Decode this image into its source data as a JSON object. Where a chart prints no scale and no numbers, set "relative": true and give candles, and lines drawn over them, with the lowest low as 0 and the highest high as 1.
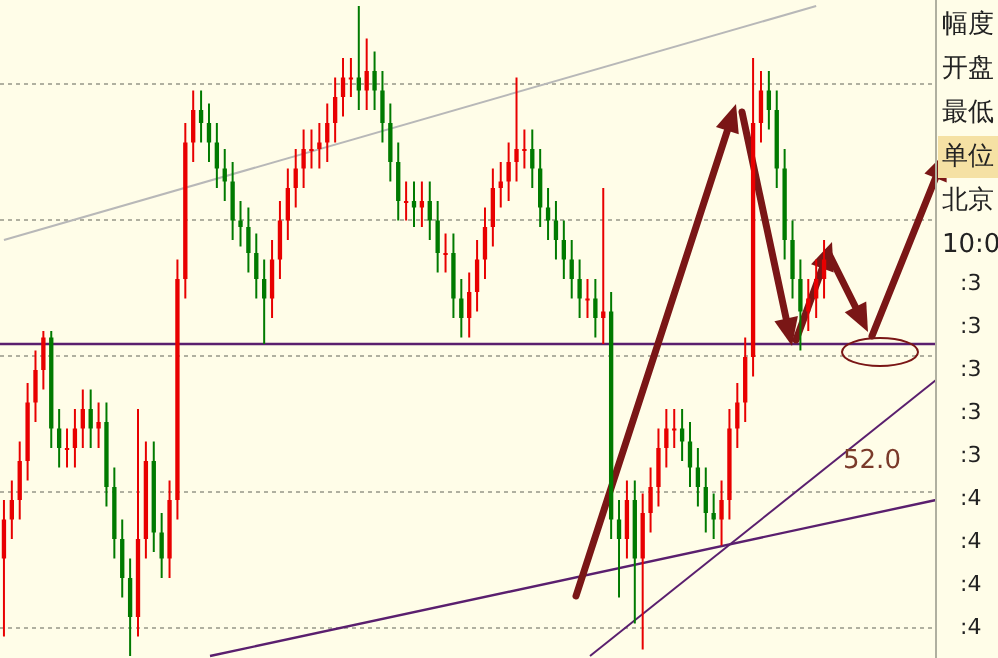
{
  "chart_data": {
    "type": "candlestick",
    "relative": true,
    "grid": true,
    "colors": [
      "#e80000",
      "#e80000",
      "#e80000",
      "#e80000",
      "#e80000",
      "#e80000",
      "#007a00",
      "#007a00",
      "#e80000",
      "#e80000",
      "#e80000",
      "#007a00",
      "#e80000",
      "#007a00",
      "#007a00",
      "#007a00",
      "#007a00",
      "#e80000",
      "#e80000",
      "#007a00",
      "#007a00",
      "#e80000",
      "#e80000",
      "#e80000",
      "#e80000",
      "#007a00",
      "#007a00",
      "#007a00",
      "#007a00",
      "#007a00",
      "#007a00",
      "#007a00",
      "#007a00",
      "#007a00",
      "#e80000",
      "#e80000",
      "#e80000",
      "#e80000",
      "#e80000",
      "#e80000",
      "#e80000",
      "#e80000",
      "#e80000",
      "#e80000",
      "#e80000",
      "#007a00",
      "#e80000",
      "#007a00",
      "#007a00",
      "#007a00",
      "#007a00",
      "#e80000",
      "#007a00",
      "#e80000",
      "#007a00",
      "#007a00",
      "#e80000",
      "#007a00",
      "#007a00",
      "#e80000",
      "#e80000",
      "#e80000",
      "#e80000",
      "#e80000",
      "#e80000",
      "#e80000",
      "#e80000",
      "#007a00",
      "#007a00",
      "#007a00",
      "#007a00",
      "#007a00",
      "#007a00",
      "#007a00",
      "#e80000",
      "#007a00",
      "#e80000",
      "#007a00",
      "#007a00",
      "#e80000",
      "#007a00",
      "#e80000",
      "#e80000",
      "#e80000",
      "#e80000",
      "#e80000",
      "#007a00",
      "#007a00",
      "#007a00",
      "#007a00",
      "#007a00",
      "#e80000",
      "#e80000",
      "#e80000",
      "#e80000",
      "#e80000",
      "#e80000",
      "#007a00",
      "#007a00",
      "#007a00",
      "#007a00",
      "#007a00",
      "#e80000",
      "#e80000",
      "#e80000"
    ],
    "categories": [
      null,
      null,
      null,
      null,
      null,
      null,
      null,
      null,
      null,
      null,
      null,
      null,
      null,
      null,
      null,
      null,
      null,
      null,
      null,
      null,
      null,
      null,
      null,
      null,
      null,
      null,
      null,
      null,
      null,
      null,
      null,
      null,
      null,
      null,
      null,
      null,
      null,
      null,
      null,
      null,
      null,
      null,
      null,
      null,
      null,
      null,
      null,
      null,
      null,
      null,
      null,
      null,
      null,
      null,
      null,
      null,
      null,
      null,
      null,
      null,
      null,
      null,
      null,
      null,
      null,
      null,
      null,
      null,
      null,
      null,
      null,
      null,
      null,
      null,
      null,
      null,
      null,
      null,
      null,
      null,
      null,
      null,
      null,
      null,
      null,
      null,
      null,
      null,
      null,
      null,
      null,
      null,
      null,
      null,
      null,
      null,
      null,
      null,
      null,
      null,
      null,
      null,
      null,
      null,
      null
    ],
    "ohlc": [
      [
        0.15,
        0.24,
        0.03,
        0.21
      ],
      [
        0.21,
        0.27,
        0.18,
        0.24
      ],
      [
        0.24,
        0.33,
        0.21,
        0.3
      ],
      [
        0.3,
        0.42,
        0.27,
        0.39
      ],
      [
        0.39,
        0.47,
        0.36,
        0.44
      ],
      [
        0.44,
        0.5,
        0.41,
        0.49
      ],
      [
        0.49,
        0.5,
        0.32,
        0.35
      ],
      [
        0.35,
        0.38,
        0.29,
        0.32
      ],
      [
        0.32,
        0.35,
        0.29,
        0.32
      ],
      [
        0.32,
        0.38,
        0.29,
        0.35
      ],
      [
        0.35,
        0.41,
        0.32,
        0.38
      ],
      [
        0.38,
        0.41,
        0.32,
        0.35
      ],
      [
        0.35,
        0.39,
        0.32,
        0.36
      ],
      [
        0.36,
        0.39,
        0.23,
        0.26
      ],
      [
        0.26,
        0.29,
        0.15,
        0.18
      ],
      [
        0.18,
        0.21,
        0.09,
        0.12
      ],
      [
        0.12,
        0.15,
        0.0,
        0.06
      ],
      [
        0.06,
        0.38,
        0.03,
        0.18
      ],
      [
        0.18,
        0.33,
        0.15,
        0.3
      ],
      [
        0.3,
        0.33,
        0.16,
        0.19
      ],
      [
        0.19,
        0.22,
        0.12,
        0.15
      ],
      [
        0.15,
        0.27,
        0.12,
        0.24
      ],
      [
        0.24,
        0.61,
        0.21,
        0.58
      ],
      [
        0.58,
        0.82,
        0.55,
        0.79
      ],
      [
        0.79,
        0.87,
        0.76,
        0.84
      ],
      [
        0.84,
        0.87,
        0.79,
        0.82
      ],
      [
        0.82,
        0.85,
        0.76,
        0.79
      ],
      [
        0.79,
        0.82,
        0.72,
        0.75
      ],
      [
        0.75,
        0.78,
        0.7,
        0.73
      ],
      [
        0.73,
        0.76,
        0.64,
        0.67
      ],
      [
        0.67,
        0.7,
        0.63,
        0.66
      ],
      [
        0.66,
        0.69,
        0.59,
        0.62
      ],
      [
        0.62,
        0.65,
        0.55,
        0.58
      ],
      [
        0.58,
        0.61,
        0.48,
        0.55
      ],
      [
        0.55,
        0.64,
        0.52,
        0.61
      ],
      [
        0.61,
        0.7,
        0.58,
        0.67
      ],
      [
        0.67,
        0.75,
        0.64,
        0.72
      ],
      [
        0.72,
        0.78,
        0.69,
        0.75
      ],
      [
        0.75,
        0.81,
        0.72,
        0.78
      ],
      [
        0.78,
        0.81,
        0.75,
        0.78
      ],
      [
        0.78,
        0.82,
        0.75,
        0.79
      ],
      [
        0.79,
        0.85,
        0.76,
        0.82
      ],
      [
        0.82,
        0.89,
        0.79,
        0.86
      ],
      [
        0.86,
        0.92,
        0.83,
        0.89
      ],
      [
        0.89,
        0.92,
        0.86,
        0.89
      ],
      [
        0.89,
        1.0,
        0.84,
        0.87
      ],
      [
        0.87,
        0.95,
        0.84,
        0.9
      ],
      [
        0.9,
        0.93,
        0.84,
        0.87
      ],
      [
        0.87,
        0.9,
        0.79,
        0.82
      ],
      [
        0.82,
        0.85,
        0.73,
        0.76
      ],
      [
        0.76,
        0.79,
        0.67,
        0.7
      ],
      [
        0.7,
        0.73,
        0.67,
        0.7
      ],
      [
        0.7,
        0.73,
        0.66,
        0.69
      ],
      [
        0.69,
        0.73,
        0.66,
        0.7
      ],
      [
        0.7,
        0.73,
        0.64,
        0.67
      ],
      [
        0.67,
        0.7,
        0.59,
        0.62
      ],
      [
        0.62,
        0.65,
        0.59,
        0.62
      ],
      [
        0.62,
        0.65,
        0.52,
        0.55
      ],
      [
        0.55,
        0.58,
        0.49,
        0.52
      ],
      [
        0.52,
        0.59,
        0.49,
        0.56
      ],
      [
        0.56,
        0.64,
        0.53,
        0.61
      ],
      [
        0.61,
        0.69,
        0.58,
        0.66
      ],
      [
        0.66,
        0.75,
        0.63,
        0.72
      ],
      [
        0.72,
        0.76,
        0.69,
        0.73
      ],
      [
        0.73,
        0.79,
        0.7,
        0.76
      ],
      [
        0.76,
        0.89,
        0.73,
        0.78
      ],
      [
        0.78,
        0.81,
        0.75,
        0.78
      ],
      [
        0.78,
        0.81,
        0.72,
        0.75
      ],
      [
        0.75,
        0.78,
        0.66,
        0.69
      ],
      [
        0.69,
        0.72,
        0.64,
        0.67
      ],
      [
        0.67,
        0.7,
        0.61,
        0.64
      ],
      [
        0.64,
        0.67,
        0.58,
        0.61
      ],
      [
        0.61,
        0.64,
        0.55,
        0.58
      ],
      [
        0.58,
        0.61,
        0.52,
        0.55
      ],
      [
        0.55,
        0.58,
        0.52,
        0.55
      ],
      [
        0.55,
        0.58,
        0.49,
        0.52
      ],
      [
        0.52,
        0.72,
        0.48,
        0.53
      ],
      [
        0.53,
        0.56,
        0.18,
        0.21
      ],
      [
        0.21,
        0.24,
        0.09,
        0.18
      ],
      [
        0.18,
        0.27,
        0.15,
        0.24
      ],
      [
        0.24,
        0.27,
        0.05,
        0.15
      ],
      [
        0.15,
        0.25,
        0.01,
        0.22
      ],
      [
        0.22,
        0.29,
        0.19,
        0.26
      ],
      [
        0.26,
        0.35,
        0.23,
        0.32
      ],
      [
        0.32,
        0.38,
        0.29,
        0.35
      ],
      [
        0.35,
        0.38,
        0.32,
        0.35
      ],
      [
        0.35,
        0.38,
        0.3,
        0.33
      ],
      [
        0.33,
        0.36,
        0.26,
        0.29
      ],
      [
        0.29,
        0.32,
        0.23,
        0.26
      ],
      [
        0.26,
        0.29,
        0.19,
        0.22
      ],
      [
        0.22,
        0.25,
        0.18,
        0.21
      ],
      [
        0.21,
        0.27,
        0.17,
        0.24
      ],
      [
        0.24,
        0.38,
        0.21,
        0.35
      ],
      [
        0.35,
        0.42,
        0.32,
        0.39
      ],
      [
        0.39,
        0.49,
        0.36,
        0.46
      ],
      [
        0.46,
        0.92,
        0.43,
        0.82
      ],
      [
        0.82,
        0.9,
        0.79,
        0.87
      ],
      [
        0.87,
        0.9,
        0.81,
        0.84
      ],
      [
        0.84,
        0.87,
        0.72,
        0.75
      ],
      [
        0.75,
        0.78,
        0.61,
        0.64
      ],
      [
        0.64,
        0.67,
        0.55,
        0.58
      ],
      [
        0.58,
        0.61,
        0.47,
        0.53
      ],
      [
        0.53,
        0.58,
        0.5,
        0.55
      ],
      [
        0.55,
        0.61,
        0.52,
        0.58
      ],
      [
        0.58,
        0.64,
        0.55,
        0.61
      ]
    ],
    "series": [
      {
        "type": "line",
        "color": "#b8b8b8",
        "values": [
          0.64,
          null,
          null,
          null,
          null,
          null,
          null,
          null,
          null,
          null,
          null,
          null,
          null,
          null,
          null,
          null,
          null,
          null,
          null,
          null,
          null,
          null,
          null,
          null,
          null,
          null,
          null,
          null,
          null,
          null,
          null,
          null,
          null,
          null,
          null,
          null,
          null,
          null,
          null,
          null,
          null,
          null,
          null,
          null,
          null,
          null,
          null,
          null,
          null,
          null,
          null,
          null,
          null,
          null,
          null,
          null,
          null,
          null,
          null,
          null,
          null,
          null,
          null,
          null,
          null,
          null,
          null,
          null,
          null,
          null,
          null,
          null,
          null,
          null,
          null,
          null,
          null,
          null,
          null,
          null,
          null,
          null,
          null,
          null,
          null,
          null,
          null,
          null,
          null,
          null,
          null,
          null,
          null,
          null,
          null,
          null,
          null,
          null,
          null,
          null,
          null,
          null,
          null,
          1.0,
          null
        ]
      }
    ],
    "ref_lines": [
      {
        "axis": "y",
        "value": 0.48,
        "color": "#5a1f6e"
      }
    ],
    "annotations": [
      "52.0",
      "幅度",
      "开盘",
      "最低",
      "单位",
      "北京",
      "10:0",
      ":3",
      ":3",
      ":3",
      ":3",
      ":3",
      ":4",
      ":4",
      ":4",
      ":4"
    ]
  }
}
